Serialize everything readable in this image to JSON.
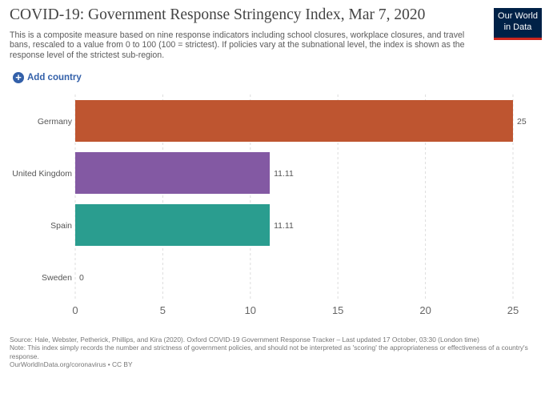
{
  "header": {
    "title": "COVID-19: Government Response Stringency Index, Mar 7, 2020",
    "subtitle": "This is a composite measure based on nine response indicators including school closures, workplace closures, and travel bans, rescaled to a value from 0 to 100 (100 = strictest). If policies vary at the subnational level, the index is shown as the response level of the strictest sub-region.",
    "logo_line1": "Our World",
    "logo_line2": "in Data",
    "add_country_label": "Add country"
  },
  "chart_data": {
    "type": "bar",
    "orientation": "horizontal",
    "title": "COVID-19: Government Response Stringency Index, Mar 7, 2020",
    "categories": [
      "Germany",
      "United Kingdom",
      "Spain",
      "Sweden"
    ],
    "values": [
      25,
      11.11,
      11.11,
      0
    ],
    "value_labels": [
      "25",
      "11.11",
      "11.11",
      "0"
    ],
    "colors": [
      "#be5530",
      "#8359a3",
      "#2a9d8f",
      "#b0b0b0"
    ],
    "xlim": [
      0,
      25
    ],
    "xticks": [
      0,
      5,
      10,
      15,
      20,
      25
    ],
    "grid": true,
    "legend": "none"
  },
  "footer": {
    "source": "Source: Hale, Webster, Petherick, Phillips, and Kira (2020). Oxford COVID-19 Government Response Tracker – Last updated 17 October, 03:30 (London time)",
    "note": "Note: This index simply records the number and strictness of government policies, and should not be interpreted as 'scoring' the appropriateness or effectiveness of a country's response.",
    "credit": "OurWorldInData.org/coronavirus • CC BY"
  }
}
